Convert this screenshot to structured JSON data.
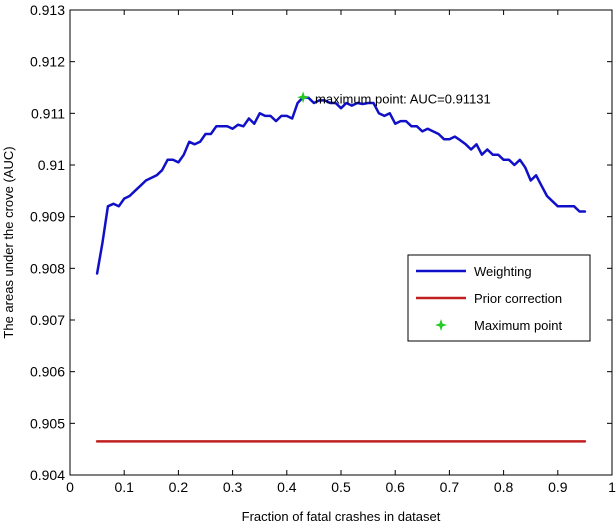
{
  "chart_data": {
    "type": "line",
    "title": "",
    "xlabel": "Fraction of fatal crashes in dataset",
    "ylabel": "The areas under the crove (AUC)",
    "xlim": [
      0,
      1
    ],
    "ylim": [
      0.904,
      0.913
    ],
    "xticks": [
      0,
      0.1,
      0.2,
      0.3,
      0.4,
      0.5,
      0.6,
      0.7,
      0.8,
      0.9,
      1
    ],
    "xtick_labels": [
      "0",
      "0.1",
      "0.2",
      "0.3",
      "0.4",
      "0.5",
      "0.6",
      "0.7",
      "0.8",
      "0.9",
      "1"
    ],
    "yticks": [
      0.904,
      0.905,
      0.906,
      0.907,
      0.908,
      0.909,
      0.91,
      0.911,
      0.912,
      0.913
    ],
    "ytick_labels": [
      "0.904",
      "0.905",
      "0.906",
      "0.907",
      "0.908",
      "0.909",
      "0.91",
      "0.911",
      "0.912",
      "0.913"
    ],
    "grid": false,
    "legend_position": "right",
    "series": [
      {
        "name": "Weighting",
        "color": "#1010c8",
        "x": [
          0.05,
          0.06,
          0.07,
          0.08,
          0.09,
          0.1,
          0.11,
          0.12,
          0.13,
          0.14,
          0.15,
          0.16,
          0.17,
          0.18,
          0.19,
          0.2,
          0.21,
          0.22,
          0.23,
          0.24,
          0.25,
          0.26,
          0.27,
          0.28,
          0.29,
          0.3,
          0.31,
          0.32,
          0.33,
          0.34,
          0.35,
          0.36,
          0.37,
          0.38,
          0.39,
          0.4,
          0.41,
          0.42,
          0.43,
          0.44,
          0.45,
          0.46,
          0.47,
          0.48,
          0.49,
          0.5,
          0.51,
          0.52,
          0.53,
          0.54,
          0.55,
          0.56,
          0.57,
          0.58,
          0.59,
          0.6,
          0.61,
          0.62,
          0.63,
          0.64,
          0.65,
          0.66,
          0.67,
          0.68,
          0.69,
          0.7,
          0.71,
          0.72,
          0.73,
          0.74,
          0.75,
          0.76,
          0.77,
          0.78,
          0.79,
          0.8,
          0.81,
          0.82,
          0.83,
          0.84,
          0.85,
          0.86,
          0.87,
          0.88,
          0.89,
          0.9,
          0.91,
          0.92,
          0.93,
          0.94,
          0.95
        ],
        "y": [
          0.9079,
          0.9085,
          0.9092,
          0.90925,
          0.9092,
          0.90935,
          0.9094,
          0.9095,
          0.9096,
          0.9097,
          0.90975,
          0.9098,
          0.9099,
          0.9101,
          0.9101,
          0.91005,
          0.9102,
          0.91045,
          0.9104,
          0.91045,
          0.9106,
          0.9106,
          0.91075,
          0.91075,
          0.91075,
          0.9107,
          0.91078,
          0.91075,
          0.9109,
          0.9108,
          0.911,
          0.91095,
          0.91095,
          0.91085,
          0.91095,
          0.91095,
          0.9109,
          0.9112,
          0.91131,
          0.9113,
          0.9112,
          0.91125,
          0.91125,
          0.9112,
          0.9112,
          0.9111,
          0.9112,
          0.91115,
          0.9112,
          0.91118,
          0.9112,
          0.9112,
          0.911,
          0.91095,
          0.911,
          0.9108,
          0.91085,
          0.91085,
          0.91075,
          0.91075,
          0.91065,
          0.9107,
          0.91065,
          0.9106,
          0.9105,
          0.9105,
          0.91055,
          0.91048,
          0.9104,
          0.9103,
          0.9104,
          0.9102,
          0.9103,
          0.9102,
          0.9102,
          0.9101,
          0.9101,
          0.91,
          0.9101,
          0.90995,
          0.9097,
          0.9098,
          0.9096,
          0.9094,
          0.9093,
          0.9092,
          0.9092,
          0.9092,
          0.9092,
          0.9091,
          0.9091
        ]
      },
      {
        "name": "Prior correction",
        "color": "#c02020",
        "x": [
          0.05,
          0.95
        ],
        "y": [
          0.90465,
          0.90465
        ]
      }
    ],
    "points": [
      {
        "name": "Maximum point",
        "color": "#22cc22",
        "x": 0.43,
        "y": 0.91131,
        "label": "maximum point: AUC=0.91131"
      }
    ]
  }
}
